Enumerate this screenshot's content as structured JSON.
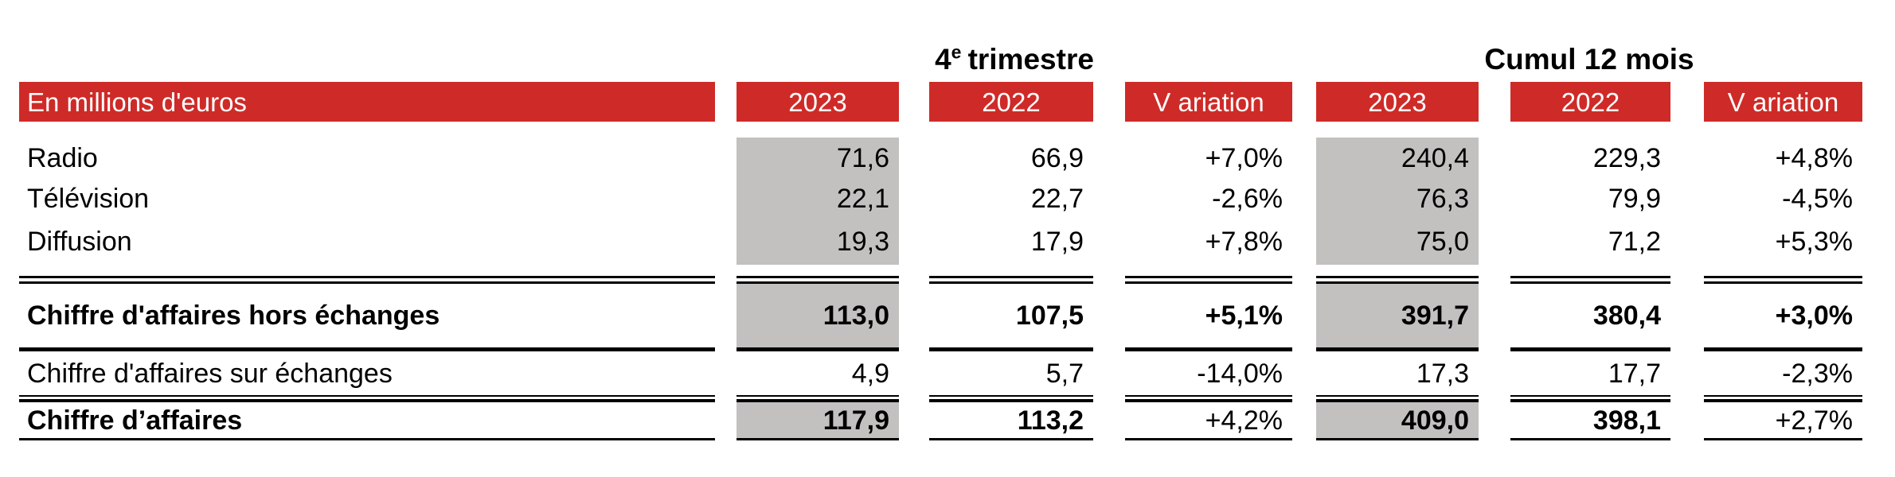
{
  "colors": {
    "header_red": "#CE2B28",
    "shade_gray": "#C2C1C0",
    "text_black": "#000000",
    "header_text": "#FFFFFF"
  },
  "titles": {
    "q4_base": "4",
    "q4_sup": "e",
    "q4_rest": "trimestre",
    "cumul": "Cumul 12 mois"
  },
  "header": {
    "unit_label": "En millions d'euros",
    "cols": [
      "2023",
      "2022",
      "V ariation",
      "2023",
      "2022",
      "V ariation"
    ]
  },
  "rows": [
    {
      "label": "Radio",
      "cells": [
        "71,6",
        "66,9",
        "+7,0%",
        "240,4",
        "229,3",
        "+4,8%"
      ]
    },
    {
      "label": "Télévision",
      "cells": [
        "22,1",
        "22,7",
        "-2,6%",
        "76,3",
        "79,9",
        "-4,5%"
      ]
    },
    {
      "label": "Diffusion",
      "cells": [
        "19,3",
        "17,9",
        "+7,8%",
        "75,0",
        "71,2",
        "+5,3%"
      ]
    },
    {
      "label": "Chiffre d'affaires hors échanges",
      "cells": [
        "113,0",
        "107,5",
        "+5,1%",
        "391,7",
        "380,4",
        "+3,0%"
      ]
    },
    {
      "label": "Chiffre d'affaires sur échanges",
      "cells": [
        "4,9",
        "5,7",
        "-14,0%",
        "17,3",
        "17,7",
        "-2,3%"
      ]
    },
    {
      "label": "Chiffre d’affaires",
      "cells": [
        "117,9",
        "113,2",
        "+4,2%",
        "409,0",
        "398,1",
        "+2,7%"
      ]
    }
  ]
}
